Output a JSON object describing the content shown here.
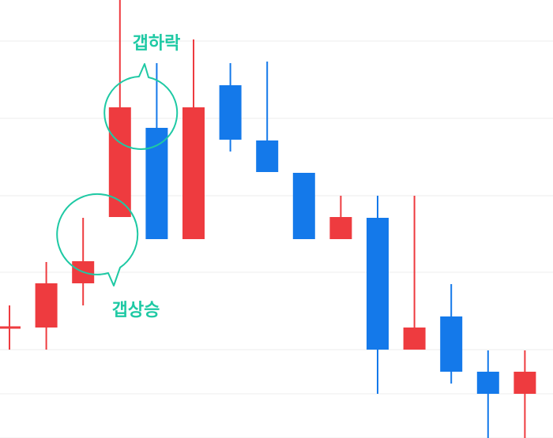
{
  "chart_data": {
    "type": "candlestick",
    "title": "",
    "xlabel": "",
    "ylabel": "",
    "ylim": [
      0,
      555
    ],
    "grid": true,
    "colors": {
      "up": "#ee3b3f",
      "down": "#1479ea",
      "annotation": "#1ec9a4",
      "grid": "#ececec"
    },
    "candles": [
      {
        "open": 140,
        "close": 140,
        "high": 168,
        "low": 112
      },
      {
        "open": 140,
        "close": 196,
        "high": 223,
        "low": 112
      },
      {
        "open": 196,
        "close": 224,
        "high": 279,
        "low": 168
      },
      {
        "open": 280,
        "close": 419,
        "high": 555,
        "low": 280
      },
      {
        "open": 393,
        "close": 252,
        "high": 475,
        "low": 252
      },
      {
        "open": 252,
        "close": 419,
        "high": 505,
        "low": 252
      },
      {
        "open": 447,
        "close": 378,
        "high": 475,
        "low": 363
      },
      {
        "open": 377,
        "close": 337,
        "high": 477,
        "low": 337
      },
      {
        "open": 336,
        "close": 252,
        "high": 336,
        "low": 252
      },
      {
        "open": 252,
        "close": 280,
        "high": 307,
        "low": 252
      },
      {
        "open": 279,
        "close": 112,
        "high": 307,
        "low": 56
      },
      {
        "open": 112,
        "close": 140,
        "high": 307,
        "low": 112
      },
      {
        "open": 154,
        "close": 84,
        "high": 195,
        "low": 69
      },
      {
        "open": 84,
        "close": 56,
        "high": 111,
        "low": 0
      },
      {
        "open": 56,
        "close": 84,
        "high": 111,
        "low": 0
      }
    ],
    "annotations": [
      {
        "label": "갭상승"
      },
      {
        "label": "갭하락"
      }
    ]
  }
}
